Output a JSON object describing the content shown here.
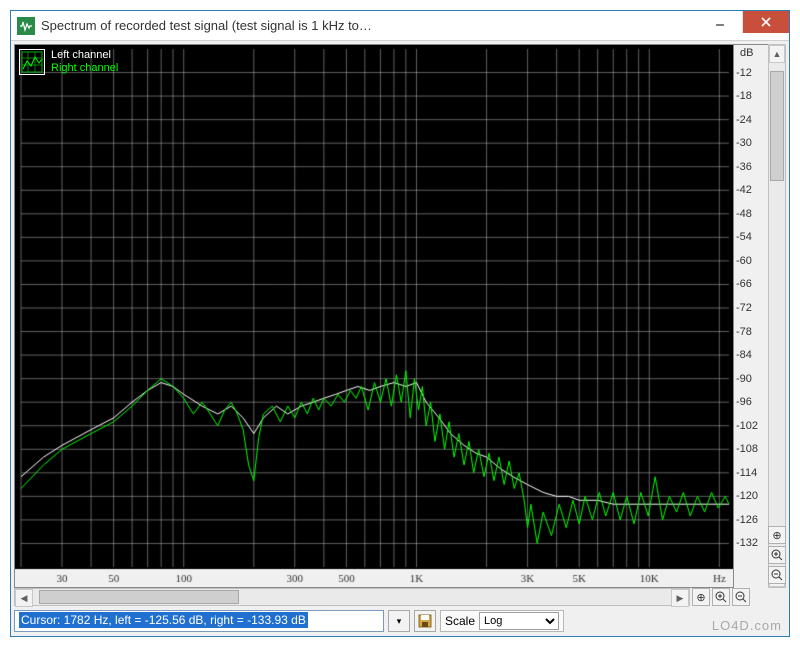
{
  "window": {
    "title": "Spectrum of recorded test signal (test signal is 1 kHz to…"
  },
  "legend": {
    "left_label": "Left channel",
    "right_label": "Right channel",
    "left_color": "#ffffff",
    "right_color": "#00ff00"
  },
  "chart": {
    "type": "line",
    "background_color": "#000000",
    "grid_color": "#c0c0c0",
    "xscale": "log",
    "xlabel_unit": "Hz",
    "ylabel_unit": "dB",
    "xlim": [
      20,
      22000
    ],
    "ylim": [
      -138,
      -6
    ],
    "x_ticks": [
      30,
      50,
      100,
      300,
      500,
      1000,
      3000,
      5000,
      10000
    ],
    "x_tick_labels": [
      "30",
      "50",
      "100",
      "300",
      "500",
      "1K",
      "3K",
      "5K",
      "10K"
    ],
    "y_ticks": [
      -12,
      -18,
      -24,
      -30,
      -36,
      -42,
      -48,
      -54,
      -60,
      -66,
      -72,
      -78,
      -84,
      -90,
      -96,
      -102,
      -108,
      -114,
      -120,
      -126,
      -132
    ],
    "x_minor_decades": [
      20,
      30,
      40,
      50,
      60,
      70,
      80,
      90,
      100,
      200,
      300,
      400,
      500,
      600,
      700,
      800,
      900,
      1000,
      2000,
      3000,
      4000,
      5000,
      6000,
      7000,
      8000,
      9000,
      10000,
      20000
    ],
    "label_fontsize": 11,
    "label_color": "#d0d0d0",
    "line_width": 1,
    "series": {
      "left": {
        "color": "#ffffff",
        "points": [
          [
            20,
            -115
          ],
          [
            25,
            -110
          ],
          [
            30,
            -107
          ],
          [
            40,
            -103
          ],
          [
            50,
            -100
          ],
          [
            60,
            -96
          ],
          [
            70,
            -93
          ],
          [
            80,
            -91
          ],
          [
            90,
            -92
          ],
          [
            100,
            -94
          ],
          [
            120,
            -97
          ],
          [
            140,
            -99
          ],
          [
            160,
            -97
          ],
          [
            180,
            -100
          ],
          [
            200,
            -104
          ],
          [
            220,
            -100
          ],
          [
            250,
            -97
          ],
          [
            280,
            -99
          ],
          [
            320,
            -97
          ],
          [
            360,
            -96
          ],
          [
            400,
            -95
          ],
          [
            450,
            -94
          ],
          [
            500,
            -93
          ],
          [
            560,
            -92
          ],
          [
            630,
            -93
          ],
          [
            700,
            -92
          ],
          [
            800,
            -91
          ],
          [
            900,
            -92
          ],
          [
            1000,
            -91
          ],
          [
            1100,
            -96
          ],
          [
            1250,
            -100
          ],
          [
            1400,
            -104
          ],
          [
            1600,
            -107
          ],
          [
            1800,
            -109
          ],
          [
            2000,
            -110
          ],
          [
            2300,
            -113
          ],
          [
            2600,
            -115
          ],
          [
            3000,
            -117
          ],
          [
            3500,
            -119
          ],
          [
            4000,
            -120
          ],
          [
            4500,
            -120
          ],
          [
            5000,
            -121
          ],
          [
            6000,
            -121
          ],
          [
            7000,
            -122
          ],
          [
            8000,
            -122
          ],
          [
            9000,
            -122
          ],
          [
            10000,
            -122
          ],
          [
            12000,
            -122
          ],
          [
            15000,
            -122
          ],
          [
            18000,
            -122
          ],
          [
            22000,
            -122
          ]
        ]
      },
      "right": {
        "color": "#00ff00",
        "points": [
          [
            20,
            -118
          ],
          [
            25,
            -112
          ],
          [
            30,
            -108
          ],
          [
            40,
            -104
          ],
          [
            50,
            -101
          ],
          [
            60,
            -97
          ],
          [
            70,
            -93
          ],
          [
            80,
            -90
          ],
          [
            90,
            -92
          ],
          [
            100,
            -95
          ],
          [
            110,
            -99
          ],
          [
            120,
            -96
          ],
          [
            130,
            -99
          ],
          [
            140,
            -102
          ],
          [
            150,
            -98
          ],
          [
            160,
            -96
          ],
          [
            170,
            -99
          ],
          [
            180,
            -103
          ],
          [
            190,
            -112
          ],
          [
            200,
            -116
          ],
          [
            210,
            -105
          ],
          [
            220,
            -99
          ],
          [
            240,
            -97
          ],
          [
            260,
            -101
          ],
          [
            280,
            -97
          ],
          [
            300,
            -100
          ],
          [
            320,
            -96
          ],
          [
            340,
            -99
          ],
          [
            360,
            -95
          ],
          [
            380,
            -98
          ],
          [
            400,
            -95
          ],
          [
            430,
            -97
          ],
          [
            460,
            -94
          ],
          [
            490,
            -96
          ],
          [
            520,
            -93
          ],
          [
            550,
            -95
          ],
          [
            580,
            -92
          ],
          [
            620,
            -98
          ],
          [
            660,
            -91
          ],
          [
            700,
            -96
          ],
          [
            740,
            -90
          ],
          [
            780,
            -97
          ],
          [
            820,
            -89
          ],
          [
            860,
            -96
          ],
          [
            900,
            -88
          ],
          [
            940,
            -100
          ],
          [
            980,
            -90
          ],
          [
            1020,
            -98
          ],
          [
            1060,
            -92
          ],
          [
            1100,
            -102
          ],
          [
            1150,
            -96
          ],
          [
            1200,
            -106
          ],
          [
            1260,
            -99
          ],
          [
            1320,
            -108
          ],
          [
            1380,
            -101
          ],
          [
            1450,
            -110
          ],
          [
            1520,
            -104
          ],
          [
            1600,
            -112
          ],
          [
            1680,
            -106
          ],
          [
            1760,
            -114
          ],
          [
            1850,
            -108
          ],
          [
            1950,
            -115
          ],
          [
            2050,
            -109
          ],
          [
            2150,
            -116
          ],
          [
            2260,
            -110
          ],
          [
            2380,
            -117
          ],
          [
            2500,
            -111
          ],
          [
            2630,
            -118
          ],
          [
            2760,
            -114
          ],
          [
            2900,
            -121
          ],
          [
            3000,
            -128
          ],
          [
            3100,
            -122
          ],
          [
            3300,
            -132
          ],
          [
            3500,
            -124
          ],
          [
            3800,
            -130
          ],
          [
            4100,
            -122
          ],
          [
            4400,
            -128
          ],
          [
            4700,
            -121
          ],
          [
            5000,
            -127
          ],
          [
            5300,
            -120
          ],
          [
            5700,
            -126
          ],
          [
            6100,
            -119
          ],
          [
            6500,
            -125
          ],
          [
            7000,
            -119
          ],
          [
            7500,
            -126
          ],
          [
            8000,
            -120
          ],
          [
            8600,
            -127
          ],
          [
            9200,
            -119
          ],
          [
            9900,
            -125
          ],
          [
            10600,
            -115
          ],
          [
            11400,
            -126
          ],
          [
            12200,
            -120
          ],
          [
            13100,
            -124
          ],
          [
            14000,
            -119
          ],
          [
            15000,
            -125
          ],
          [
            16100,
            -120
          ],
          [
            17300,
            -124
          ],
          [
            18500,
            -119
          ],
          [
            19800,
            -123
          ],
          [
            21200,
            -120
          ],
          [
            22000,
            -122
          ]
        ]
      }
    }
  },
  "status": {
    "cursor_text": "Cursor: 1782 Hz, left = -125.56 dB, right = -133.93 dB",
    "scale_label": "Scale",
    "scale_value": "Log"
  },
  "buttons": {
    "save_icon": "save-icon",
    "dropdown_icon": "chevron-down-icon"
  },
  "watermark": "LO4D.com"
}
